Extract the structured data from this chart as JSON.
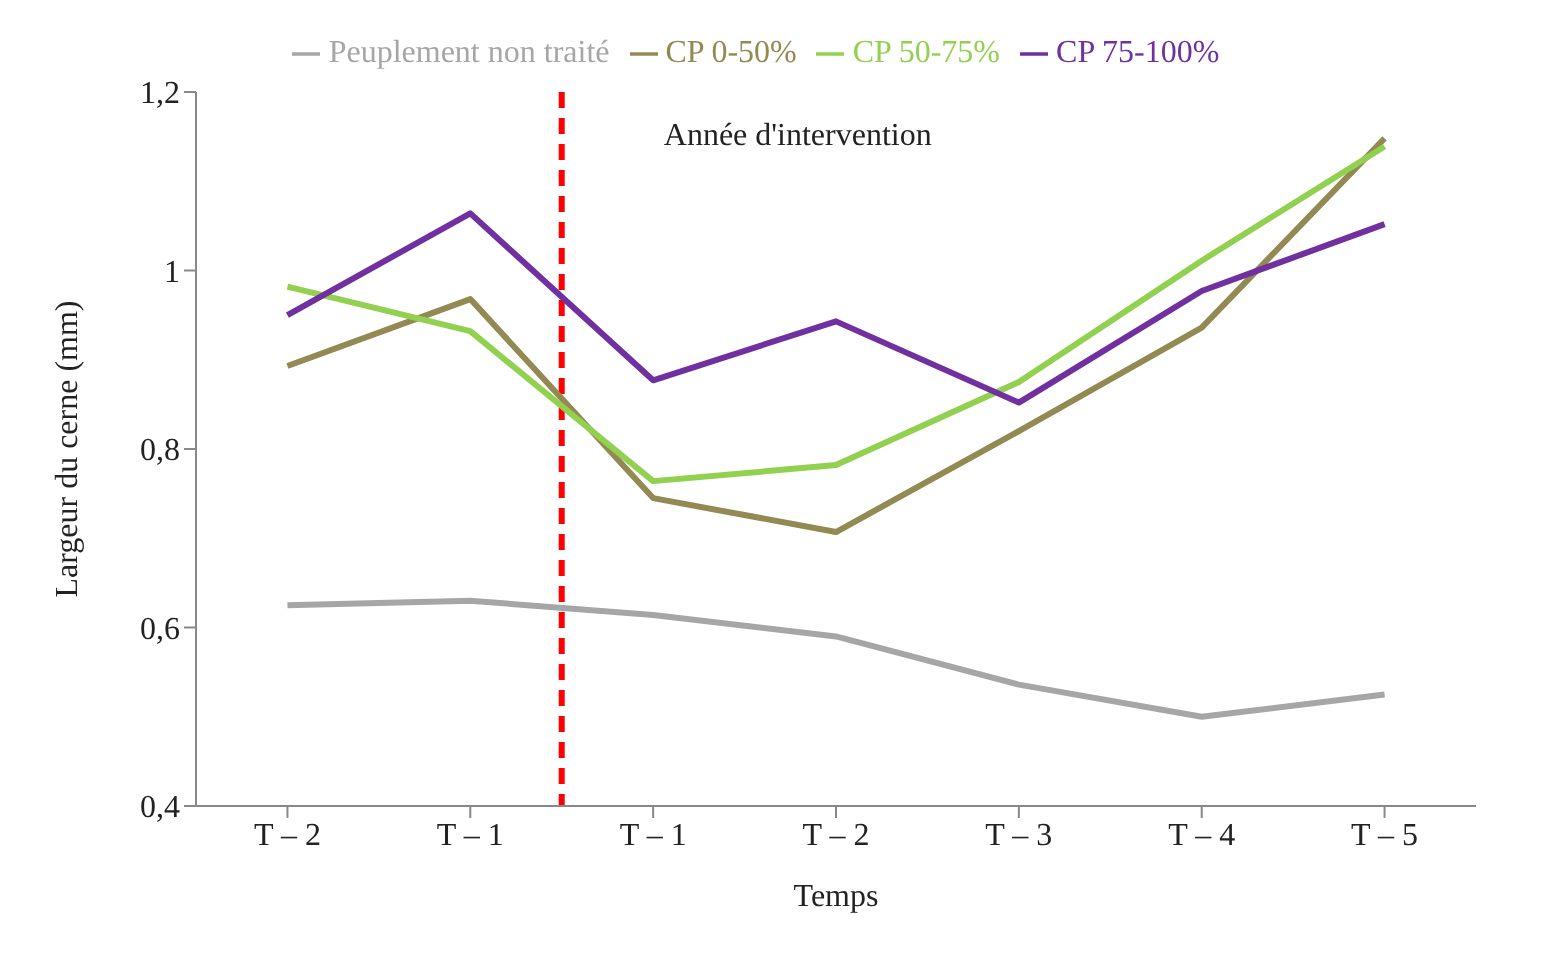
{
  "chart_data": {
    "type": "line",
    "xlabel": "Temps",
    "ylabel": "Largeur du cerne (mm)",
    "categories": [
      "T – 2",
      "T – 1",
      "T – 1",
      "T – 2",
      "T – 3",
      "T – 4",
      "T – 5"
    ],
    "series": [
      {
        "name": "Peuplement non traité",
        "color": "#a6a6a6",
        "values": [
          0.625,
          0.63,
          0.614,
          0.59,
          0.536,
          0.5,
          0.525
        ]
      },
      {
        "name": "CP 0-50%",
        "color": "#938953",
        "values": [
          0.893,
          0.968,
          0.745,
          0.707,
          0.82,
          0.936,
          1.148
        ]
      },
      {
        "name": "CP 50-75%",
        "color": "#92d050",
        "values": [
          0.982,
          0.932,
          0.764,
          0.782,
          0.875,
          1.011,
          1.139
        ]
      },
      {
        "name": "CP 75-100%",
        "color": "#7030a0",
        "values": [
          0.95,
          1.064,
          0.877,
          0.943,
          0.852,
          0.977,
          1.052
        ]
      }
    ],
    "ylim": [
      0.4,
      1.2
    ],
    "yticks": [
      {
        "value": 0.4,
        "label": "0,4"
      },
      {
        "value": 0.6,
        "label": "0,6"
      },
      {
        "value": 0.8,
        "label": "0,8"
      },
      {
        "value": 1,
        "label": "1"
      },
      {
        "value": 1.2,
        "label": "1,2"
      }
    ],
    "annotations": [
      "Année d'intervention"
    ],
    "grid": false,
    "legend": "top",
    "marker": "none",
    "line_style": "solid"
  }
}
